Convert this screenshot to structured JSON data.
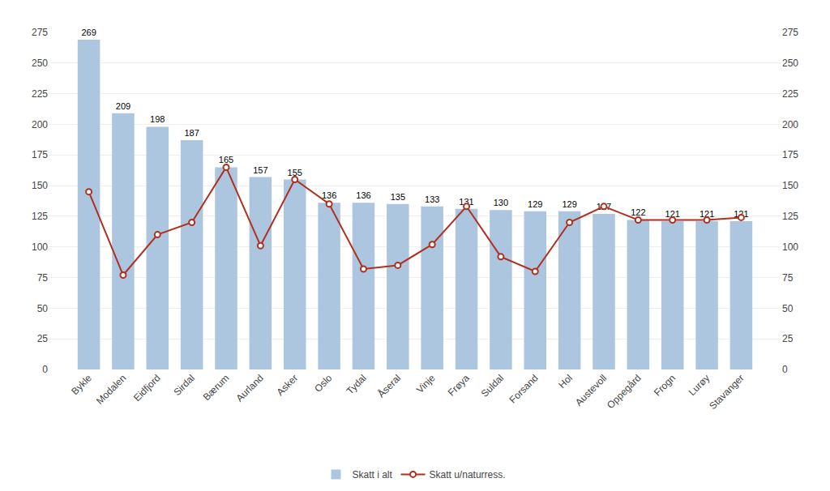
{
  "chart_data": {
    "type": "bar",
    "categories": [
      "Bykle",
      "Modalen",
      "Eidfjord",
      "Sirdal",
      "Bærum",
      "Aurland",
      "Asker",
      "Oslo",
      "Tydal",
      "Åseral",
      "Vinje",
      "Frøya",
      "Suldal",
      "Forsand",
      "Hol",
      "Austevoll",
      "Oppegård",
      "Frogn",
      "Lurøy",
      "Stavanger"
    ],
    "series": [
      {
        "name": "Skatt i alt",
        "type": "bar",
        "color": "#adc6e0",
        "data_labels": true,
        "values": [
          269,
          209,
          198,
          187,
          165,
          157,
          155,
          136,
          136,
          135,
          133,
          131,
          130,
          129,
          129,
          127,
          122,
          121,
          121,
          121
        ]
      },
      {
        "name": "Skatt u/naturress.",
        "type": "line",
        "axis": "y2",
        "color": "#b03020",
        "marker": "circle",
        "values": [
          145,
          77,
          110,
          120,
          165,
          101,
          155,
          135,
          82,
          85,
          102,
          133,
          92,
          80,
          120,
          133,
          122,
          122,
          122,
          124
        ]
      }
    ],
    "ylim": [
      0,
      275
    ],
    "yticks": [
      0,
      25,
      50,
      75,
      100,
      125,
      150,
      175,
      200,
      225,
      250,
      275
    ],
    "y2lim": [
      0,
      275
    ],
    "y2ticks": [
      0,
      25,
      50,
      75,
      100,
      125,
      150,
      175,
      200,
      225,
      250,
      275
    ],
    "grid": true,
    "legend": "bottom"
  }
}
